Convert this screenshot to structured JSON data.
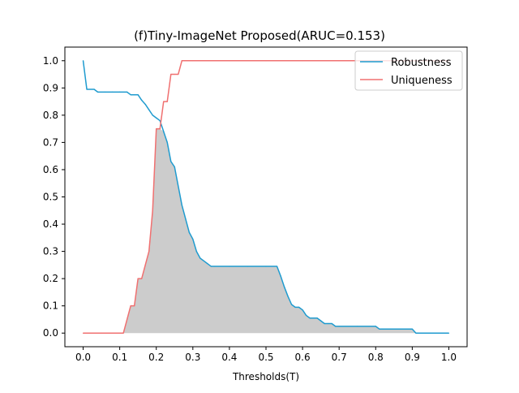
{
  "chart_data": {
    "type": "line",
    "title": "(f)Tiny-ImageNet Proposed(ARUC=0.153)",
    "xlabel": "Thresholds(T)",
    "ylabel": "",
    "xlim": [
      -0.05,
      1.05
    ],
    "ylim": [
      -0.05,
      1.05
    ],
    "xticks": [
      "0.0",
      "0.1",
      "0.2",
      "0.3",
      "0.4",
      "0.5",
      "0.6",
      "0.7",
      "0.8",
      "0.9",
      "1.0"
    ],
    "yticks": [
      "0.0",
      "0.1",
      "0.2",
      "0.3",
      "0.4",
      "0.5",
      "0.6",
      "0.7",
      "0.8",
      "0.9",
      "1.0"
    ],
    "grid": false,
    "legend_position": "upper right",
    "fill_between": "min(Robustness, Uniqueness)",
    "fill_color": "#cccccc",
    "series": [
      {
        "name": "Robustness",
        "color": "#1f9bcf",
        "x": [
          0.0,
          0.01,
          0.03,
          0.04,
          0.06,
          0.08,
          0.1,
          0.12,
          0.13,
          0.15,
          0.16,
          0.17,
          0.18,
          0.19,
          0.2,
          0.21,
          0.22,
          0.23,
          0.24,
          0.25,
          0.26,
          0.27,
          0.28,
          0.29,
          0.3,
          0.31,
          0.32,
          0.33,
          0.34,
          0.35,
          0.36,
          0.4,
          0.45,
          0.5,
          0.53,
          0.54,
          0.55,
          0.56,
          0.57,
          0.58,
          0.59,
          0.6,
          0.61,
          0.62,
          0.63,
          0.64,
          0.65,
          0.66,
          0.67,
          0.68,
          0.69,
          0.7,
          0.75,
          0.8,
          0.81,
          0.82,
          0.9,
          0.91,
          0.95,
          1.0
        ],
        "y": [
          1.0,
          0.895,
          0.895,
          0.885,
          0.885,
          0.885,
          0.885,
          0.885,
          0.875,
          0.875,
          0.855,
          0.84,
          0.82,
          0.8,
          0.79,
          0.78,
          0.74,
          0.7,
          0.63,
          0.61,
          0.54,
          0.47,
          0.42,
          0.37,
          0.345,
          0.3,
          0.275,
          0.265,
          0.255,
          0.245,
          0.245,
          0.245,
          0.245,
          0.245,
          0.245,
          0.21,
          0.17,
          0.135,
          0.105,
          0.095,
          0.095,
          0.085,
          0.065,
          0.055,
          0.055,
          0.055,
          0.045,
          0.035,
          0.035,
          0.035,
          0.025,
          0.025,
          0.025,
          0.025,
          0.015,
          0.015,
          0.015,
          0.0,
          0.0,
          0.0
        ]
      },
      {
        "name": "Uniqueness",
        "color": "#f07070",
        "x": [
          0.0,
          0.05,
          0.11,
          0.13,
          0.14,
          0.15,
          0.16,
          0.17,
          0.18,
          0.19,
          0.2,
          0.21,
          0.22,
          0.23,
          0.24,
          0.25,
          0.26,
          0.27,
          0.3,
          0.4,
          0.5,
          0.6,
          0.7,
          0.8,
          0.9,
          1.0
        ],
        "y": [
          0.0,
          0.0,
          0.0,
          0.1,
          0.1,
          0.2,
          0.2,
          0.25,
          0.3,
          0.45,
          0.75,
          0.75,
          0.85,
          0.85,
          0.95,
          0.95,
          0.95,
          1.0,
          1.0,
          1.0,
          1.0,
          1.0,
          1.0,
          1.0,
          1.0,
          1.0
        ]
      }
    ]
  }
}
